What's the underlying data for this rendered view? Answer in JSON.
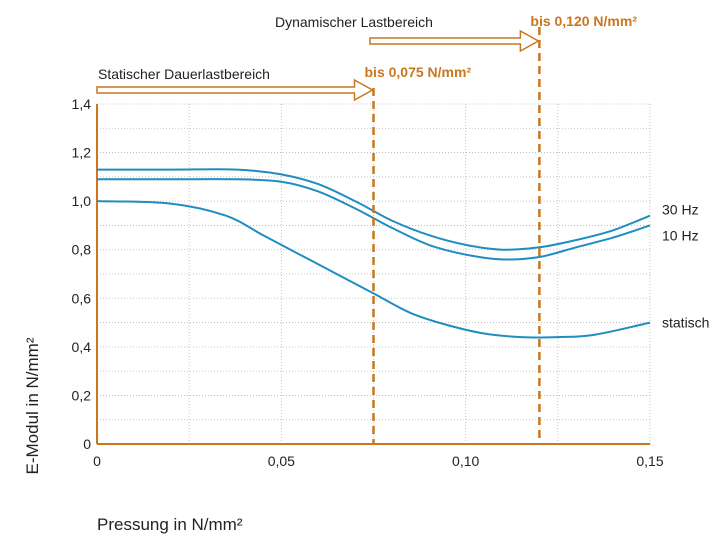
{
  "chart_data": {
    "type": "line",
    "xlabel": "Pressung in N/mm²",
    "ylabel": "E-Modul in N/mm²",
    "xlim": [
      0,
      0.15
    ],
    "ylim": [
      0,
      1.4
    ],
    "grid": true,
    "x_ticks": [
      {
        "value": 0,
        "label": "0"
      },
      {
        "value": 0.05,
        "label": "0,05"
      },
      {
        "value": 0.1,
        "label": "0,10"
      },
      {
        "value": 0.15,
        "label": "0,15"
      }
    ],
    "y_ticks": [
      {
        "value": 0,
        "label": "0"
      },
      {
        "value": 0.2,
        "label": "0,2"
      },
      {
        "value": 0.4,
        "label": "0,4"
      },
      {
        "value": 0.6,
        "label": "0,6"
      },
      {
        "value": 0.8,
        "label": "0,8"
      },
      {
        "value": 1.0,
        "label": "1,0"
      },
      {
        "value": 1.2,
        "label": "1,2"
      },
      {
        "value": 1.4,
        "label": "1,4"
      }
    ],
    "series": [
      {
        "name": "30 Hz",
        "color": "#1f8dc1",
        "x": [
          0,
          0.02,
          0.038,
          0.05,
          0.06,
          0.07,
          0.08,
          0.09,
          0.1,
          0.11,
          0.12,
          0.13,
          0.14,
          0.15
        ],
        "y": [
          1.13,
          1.13,
          1.13,
          1.11,
          1.07,
          1.0,
          0.92,
          0.86,
          0.82,
          0.8,
          0.81,
          0.84,
          0.88,
          0.94
        ]
      },
      {
        "name": "10 Hz",
        "color": "#1f8dc1",
        "x": [
          0,
          0.02,
          0.038,
          0.05,
          0.06,
          0.07,
          0.08,
          0.09,
          0.1,
          0.11,
          0.12,
          0.13,
          0.14,
          0.15
        ],
        "y": [
          1.09,
          1.09,
          1.09,
          1.08,
          1.04,
          0.97,
          0.89,
          0.82,
          0.78,
          0.76,
          0.77,
          0.81,
          0.85,
          0.9
        ]
      },
      {
        "name": "statisch",
        "color": "#1f8dc1",
        "x": [
          0,
          0.02,
          0.035,
          0.045,
          0.055,
          0.065,
          0.075,
          0.085,
          0.095,
          0.105,
          0.115,
          0.125,
          0.135,
          0.15
        ],
        "y": [
          1.0,
          0.99,
          0.94,
          0.86,
          0.78,
          0.7,
          0.62,
          0.54,
          0.49,
          0.455,
          0.44,
          0.44,
          0.45,
          0.5
        ]
      }
    ],
    "annotations": [
      {
        "kind": "vline",
        "x": 0.075,
        "label": "bis 0,075 N/mm²",
        "range_label": "Statischer Dauerlastbereich",
        "color": "#c9761f"
      },
      {
        "kind": "vline",
        "x": 0.12,
        "label": "bis 0,120 N/mm²",
        "range_label": "Dynamischer Lastbereich",
        "color": "#c9761f"
      }
    ]
  }
}
